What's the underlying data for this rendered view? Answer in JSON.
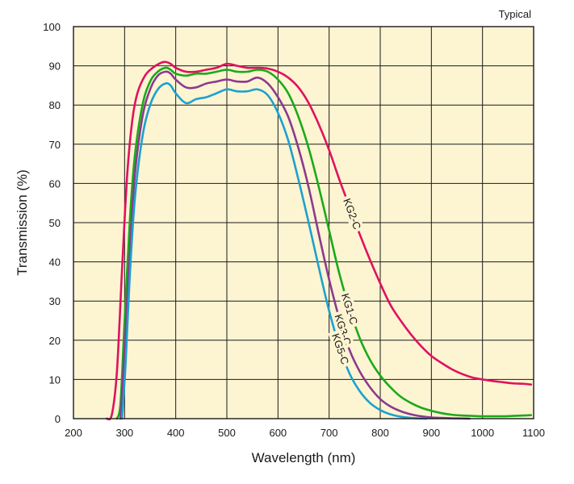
{
  "chart_data": {
    "type": "line",
    "title": "",
    "note": "Typical",
    "xlabel": "Wavelength (nm)",
    "ylabel": "Transmission (%)",
    "xlim": [
      200,
      1100
    ],
    "ylim": [
      0,
      100
    ],
    "xticks": [
      200,
      300,
      400,
      500,
      600,
      700,
      800,
      900,
      1000,
      1100
    ],
    "yticks": [
      0,
      10,
      20,
      30,
      40,
      50,
      60,
      70,
      80,
      90,
      100
    ],
    "grid": true,
    "legend": "none",
    "background_color": "#fdf4d2",
    "series": [
      {
        "name": "KG2-C",
        "color": "#e0115f",
        "label_at_x": 745,
        "x": [
          265,
          275,
          285,
          295,
          305,
          315,
          325,
          340,
          355,
          370,
          380,
          390,
          400,
          420,
          440,
          460,
          480,
          500,
          520,
          540,
          560,
          580,
          600,
          620,
          640,
          660,
          680,
          700,
          720,
          740,
          760,
          780,
          800,
          820,
          840,
          860,
          880,
          900,
          920,
          940,
          960,
          980,
          1000,
          1020,
          1040,
          1060,
          1080,
          1095
        ],
        "y": [
          0,
          1,
          12,
          38,
          62,
          76,
          83,
          87.5,
          89.5,
          90.7,
          91,
          90.5,
          89.5,
          88.5,
          88.5,
          89,
          89.5,
          90.5,
          90,
          89.5,
          89.5,
          89.3,
          88.5,
          87,
          84.5,
          80.5,
          75,
          68.5,
          61,
          54,
          47,
          40.5,
          34.5,
          29,
          25,
          21.5,
          18.5,
          16,
          14.2,
          12.6,
          11.4,
          10.5,
          10,
          9.6,
          9.3,
          9,
          8.9,
          8.7
        ]
      },
      {
        "name": "KG1-C",
        "color": "#1aaa1a",
        "label_at_x": 740,
        "x": [
          285,
          292,
          300,
          310,
          320,
          335,
          350,
          365,
          380,
          390,
          400,
          420,
          440,
          460,
          480,
          500,
          520,
          540,
          560,
          580,
          600,
          620,
          640,
          660,
          680,
          700,
          720,
          740,
          760,
          780,
          800,
          820,
          840,
          860,
          880,
          900,
          920,
          940,
          960,
          980,
          1000,
          1020,
          1040,
          1060,
          1080,
          1095
        ],
        "y": [
          0,
          4,
          25,
          50,
          67,
          80,
          86,
          88.5,
          89.5,
          89,
          88,
          87.5,
          88,
          88,
          88.5,
          89,
          88.5,
          88.5,
          89,
          88.5,
          86.5,
          83,
          77,
          69,
          59,
          48,
          37,
          28,
          20.5,
          15,
          11,
          8,
          5.6,
          4,
          2.8,
          2,
          1.4,
          1,
          0.8,
          0.7,
          0.6,
          0.6,
          0.6,
          0.7,
          0.8,
          0.9
        ]
      },
      {
        "name": "KG3-C",
        "color": "#8b3a8f",
        "label_at_x": 727,
        "x": [
          292,
          300,
          310,
          320,
          335,
          350,
          365,
          380,
          390,
          400,
          420,
          440,
          460,
          480,
          500,
          520,
          540,
          560,
          580,
          600,
          620,
          640,
          660,
          680,
          700,
          720,
          740,
          760,
          780,
          800,
          820,
          840,
          860,
          880,
          900,
          920,
          940,
          960,
          975
        ],
        "y": [
          0,
          18,
          42,
          62,
          77,
          84,
          87.5,
          88.5,
          88,
          86.5,
          84.5,
          84.5,
          85.5,
          86,
          86.5,
          86,
          86,
          87,
          85.5,
          82,
          77,
          69,
          59,
          47,
          35.5,
          25.5,
          17.5,
          12,
          8,
          5,
          3.1,
          1.9,
          1.1,
          0.6,
          0.3,
          0.2,
          0.1,
          0.05,
          0
        ]
      },
      {
        "name": "KG5-C",
        "color": "#1ba1d0",
        "label_at_x": 722,
        "x": [
          295,
          302,
          310,
          320,
          335,
          350,
          365,
          380,
          390,
          400,
          420,
          440,
          460,
          480,
          500,
          520,
          540,
          560,
          580,
          600,
          620,
          640,
          660,
          680,
          700,
          720,
          740,
          760,
          780,
          800,
          820,
          840,
          860,
          880,
          890
        ],
        "y": [
          0,
          14,
          36,
          56,
          72,
          80,
          84,
          85.5,
          85,
          83,
          80.5,
          81.5,
          82,
          83,
          84,
          83.5,
          83.5,
          84,
          82.5,
          78,
          71,
          61,
          50,
          38.5,
          27.5,
          18.5,
          11.5,
          7,
          4,
          2.2,
          1.1,
          0.5,
          0.2,
          0.05,
          0
        ]
      }
    ]
  }
}
